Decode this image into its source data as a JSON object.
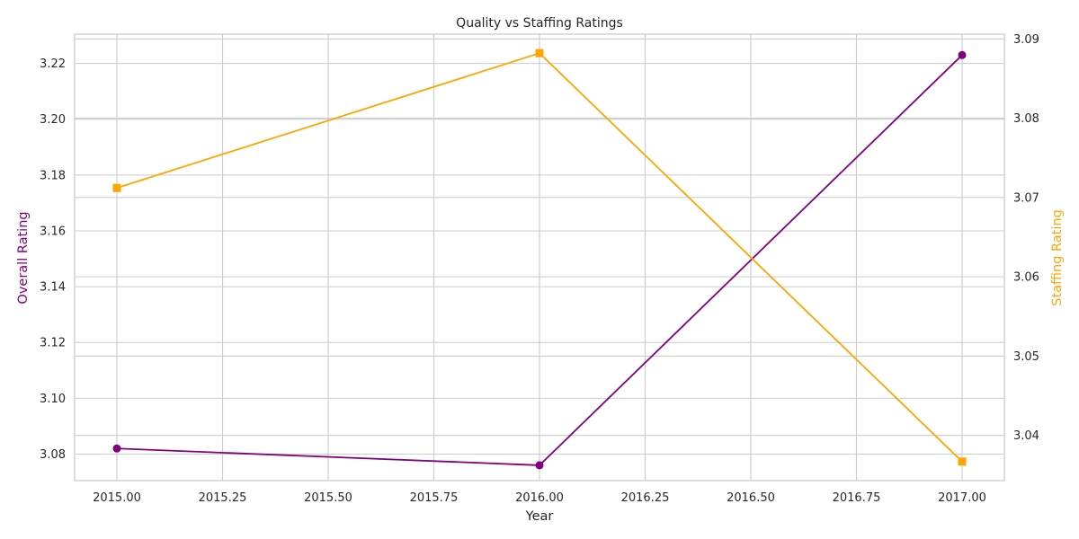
{
  "chart_data": {
    "type": "line",
    "title": "Quality vs Staffing Ratings",
    "xlabel": "Year",
    "ylabel_left": "Overall Rating",
    "ylabel_right": "Staffing Rating",
    "xlim": [
      2014.9,
      2017.1
    ],
    "ylim_left": [
      3.0705,
      3.2305
    ],
    "ylim_right": [
      3.0343,
      3.0906
    ],
    "x_ticks": [
      2015.0,
      2015.25,
      2015.5,
      2015.75,
      2016.0,
      2016.25,
      2016.5,
      2016.75,
      2017.0
    ],
    "x_tick_labels": [
      "2015.00",
      "2015.25",
      "2015.50",
      "2015.75",
      "2016.00",
      "2016.25",
      "2016.50",
      "2016.75",
      "2017.00"
    ],
    "y_left_ticks": [
      3.08,
      3.1,
      3.12,
      3.14,
      3.16,
      3.18,
      3.2,
      3.22
    ],
    "y_left_tick_labels": [
      "3.08",
      "3.10",
      "3.12",
      "3.14",
      "3.16",
      "3.18",
      "3.20",
      "3.22"
    ],
    "y_right_ticks": [
      3.04,
      3.05,
      3.06,
      3.07,
      3.08,
      3.09
    ],
    "y_right_tick_labels": [
      "3.04",
      "3.05",
      "3.06",
      "3.07",
      "3.08",
      "3.09"
    ],
    "grid": true,
    "series": [
      {
        "name": "Overall Rating",
        "axis": "left",
        "color": "#800080",
        "marker": "circle",
        "x": [
          2015,
          2016,
          2017
        ],
        "y": [
          3.082,
          3.076,
          3.223
        ]
      },
      {
        "name": "Staffing Rating",
        "axis": "right",
        "color": "#FFA500",
        "marker": "square",
        "x": [
          2015,
          2016,
          2017
        ],
        "y": [
          3.0712,
          3.0882,
          3.0367
        ]
      }
    ]
  }
}
